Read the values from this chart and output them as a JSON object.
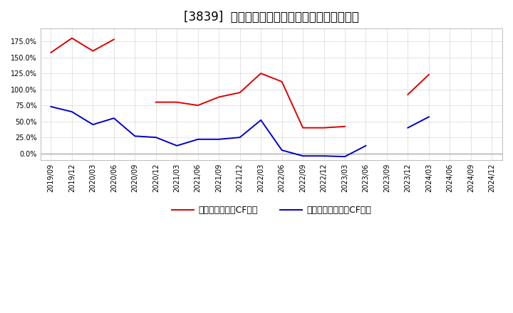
{
  "title": "[3839]  有利子負債キャッシュフロー比率の推移",
  "red_label": "有利子負債営業CF比率",
  "blue_label": "有利子負債フリーCF比率",
  "x_labels": [
    "2019/09",
    "2019/12",
    "2020/03",
    "2020/06",
    "2020/09",
    "2020/12",
    "2021/03",
    "2021/06",
    "2021/09",
    "2021/12",
    "2022/03",
    "2022/06",
    "2022/09",
    "2022/12",
    "2023/03",
    "2023/06",
    "2023/09",
    "2023/12",
    "2024/03",
    "2024/06",
    "2024/09",
    "2024/12"
  ],
  "red_values": [
    1.575,
    1.8,
    1.6,
    1.78,
    null,
    0.8,
    0.8,
    0.75,
    0.88,
    0.95,
    1.25,
    1.12,
    0.4,
    0.4,
    0.42,
    null,
    null,
    0.92,
    1.23,
    null,
    null,
    null
  ],
  "blue_values": [
    0.73,
    0.65,
    0.45,
    0.55,
    0.27,
    0.25,
    0.12,
    0.22,
    0.22,
    0.25,
    0.52,
    0.05,
    -0.04,
    -0.04,
    -0.05,
    0.12,
    null,
    0.4,
    0.57,
    null,
    null,
    null
  ],
  "ylim": [
    -0.1,
    1.95
  ],
  "yticks": [
    0.0,
    0.25,
    0.5,
    0.75,
    1.0,
    1.25,
    1.5,
    1.75
  ],
  "background_color": "#ffffff",
  "plot_bg_color": "#ffffff",
  "grid_color": "#aaaaaa",
  "red_color": "#dd0000",
  "blue_color": "#0000cc",
  "title_fontsize": 12,
  "legend_fontsize": 9,
  "tick_fontsize": 7.0
}
